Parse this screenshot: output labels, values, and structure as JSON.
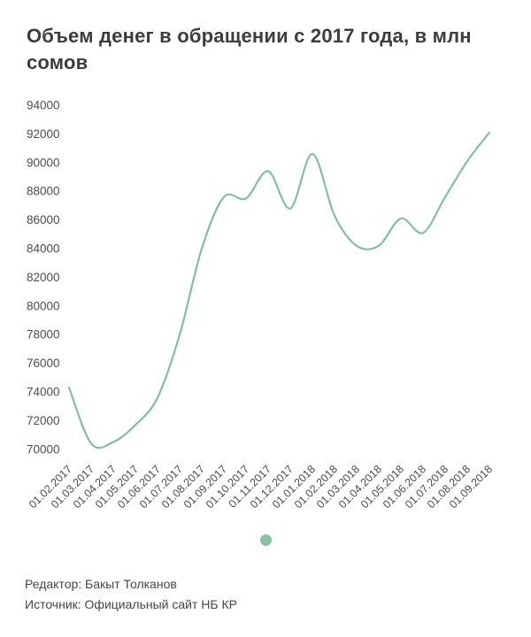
{
  "title": "Объем денег в обращении с 2017 года, в млн сомов",
  "footer": {
    "editor": "Редактор: Бакыт Толканов",
    "source": "Источник: Официальный сайт НБ КР"
  },
  "colors": {
    "line": "#85bda3",
    "legend_marker": "#8bc0a6",
    "title_text": "#3d3d3d",
    "axis_text": "#4d4d4d"
  },
  "chart_data": {
    "type": "line",
    "title": "Объем денег в обращении с 2017 года, в млн сомов",
    "xlabel": "",
    "ylabel": "млн сомов",
    "categories": [
      "01.02.2017",
      "01.03.2017",
      "01.04.2017",
      "01.05.2017",
      "01.06.2017",
      "01.07.2017",
      "01.08.2017",
      "01.09.2017",
      "01.10.2017",
      "01.11.2017",
      "01.12.2017",
      "01.01.2018",
      "01.02.2018",
      "01.03.2018",
      "01.04.2018",
      "01.05.2018",
      "01.06.2018",
      "01.07.2018",
      "01.08.2018",
      "01.09.2018"
    ],
    "values": [
      74300,
      70400,
      70500,
      71700,
      73600,
      78000,
      84000,
      87600,
      87500,
      89400,
      86800,
      90600,
      86300,
      84200,
      84200,
      86100,
      85100,
      87600,
      90100,
      92100
    ],
    "ylim": [
      70000,
      94000
    ],
    "yticks": [
      70000,
      72000,
      74000,
      76000,
      78000,
      80000,
      82000,
      84000,
      86000,
      88000,
      90000,
      92000,
      94000
    ],
    "grid": false,
    "legend_position": "bottom-center",
    "line_smoothing": "spline"
  }
}
